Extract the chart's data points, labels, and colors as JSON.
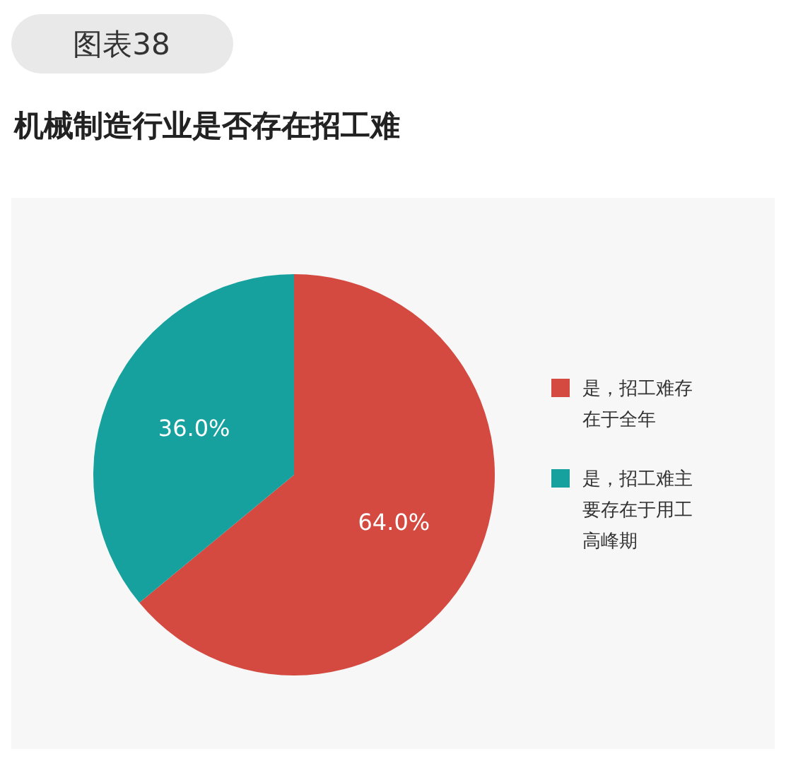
{
  "chart_data": {
    "type": "pie",
    "title": "机械制造行业是否存在招工难",
    "annotations": [
      "图表38"
    ],
    "categories": [
      "是，招工难存在于全年",
      "是，招工难主要存在于用工高峰期"
    ],
    "values": [
      64.0,
      36.0
    ],
    "colors": [
      "#d44a40",
      "#17a19e"
    ],
    "value_labels": [
      "64.0%",
      "36.0%"
    ],
    "legend": "right"
  }
}
